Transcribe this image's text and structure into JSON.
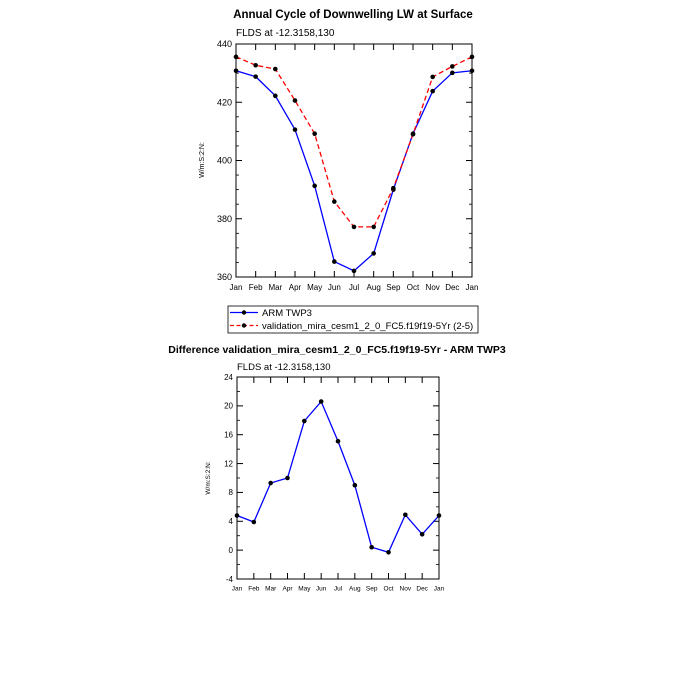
{
  "chart_data": [
    {
      "type": "line",
      "title": "Annual Cycle of Downwelling LW at Surface",
      "subtitle": "FLDS at -12.3158,130",
      "ylabel": "W/m:S:2:N:",
      "xlabel": "",
      "categories": [
        "Jan",
        "Feb",
        "Mar",
        "Apr",
        "May",
        "Jun",
        "Jul",
        "Aug",
        "Sep",
        "Oct",
        "Nov",
        "Dec",
        "Jan"
      ],
      "ylim": [
        360,
        440
      ],
      "yticks": [
        "360",
        "380",
        "400",
        "420",
        "440"
      ],
      "grid": false,
      "legend_position": "bottom",
      "series": [
        {
          "name": "ARM TWP3",
          "color": "#0000ff",
          "dash": "solid",
          "values": [
            430.8,
            428.8,
            422.2,
            410.6,
            391.3,
            365.3,
            362.1,
            368.1,
            390.0,
            409.2,
            423.8,
            430.1,
            430.8
          ]
        },
        {
          "name": "validation_mira_cesm1_2_0_FC5.f19f19-5Yr (2-5)",
          "color": "#ff0000",
          "dash": "dashed",
          "values": [
            435.6,
            432.7,
            431.4,
            420.6,
            409.2,
            385.9,
            377.2,
            377.2,
            390.5,
            409.0,
            428.7,
            432.3,
            435.6
          ]
        }
      ]
    },
    {
      "type": "line",
      "title": "Difference validation_mira_cesm1_2_0_FC5.f19f19-5Yr - ARM TWP3",
      "subtitle": "FLDS at -12.3158,130",
      "ylabel": "W/m:S:2:N:",
      "xlabel": "",
      "categories": [
        "Jan",
        "Feb",
        "Mar",
        "Apr",
        "May",
        "Jun",
        "Jul",
        "Aug",
        "Sep",
        "Oct",
        "Nov",
        "Dec",
        "Jan"
      ],
      "ylim": [
        -4,
        24
      ],
      "yticks": [
        "-4",
        "0",
        "4",
        "8",
        "12",
        "16",
        "20",
        "24"
      ],
      "grid": false,
      "series": [
        {
          "color": "#0000ff",
          "dash": "solid",
          "values": [
            4.8,
            3.9,
            9.3,
            10.0,
            17.9,
            20.6,
            15.1,
            9.0,
            0.4,
            -0.3,
            4.9,
            2.2,
            4.8
          ]
        }
      ]
    }
  ]
}
